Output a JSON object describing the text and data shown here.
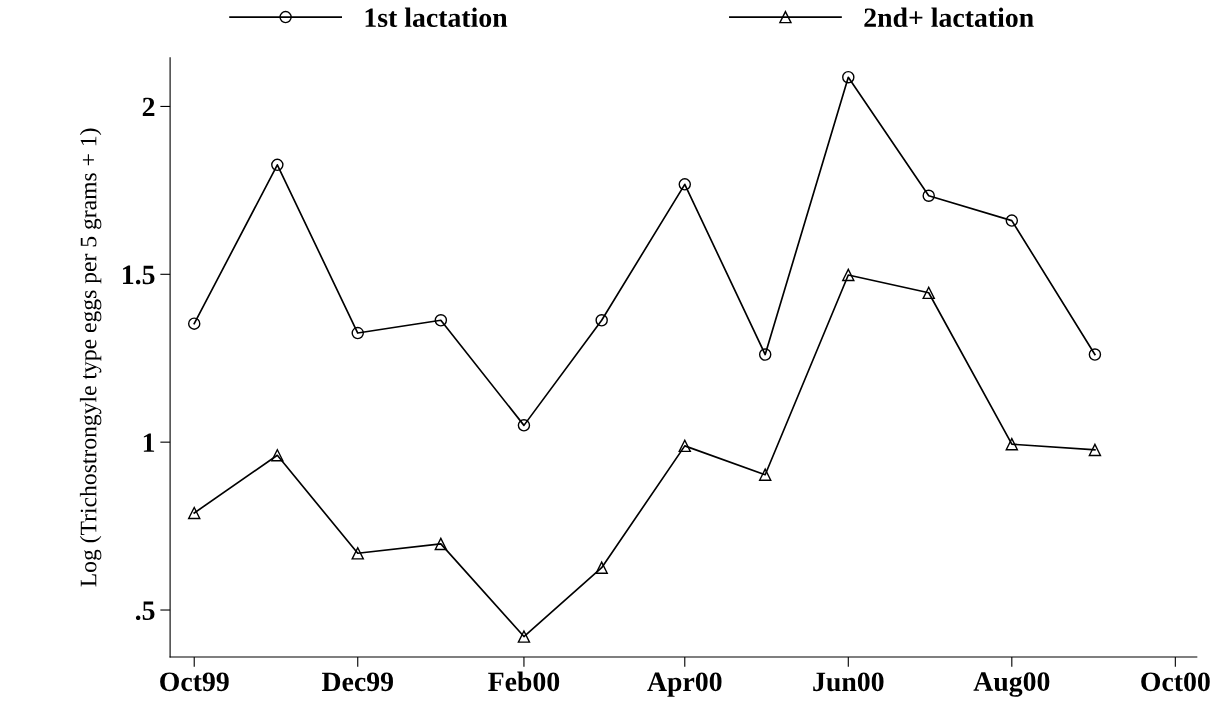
{
  "chart_data": {
    "type": "line",
    "ylabel": "Log (Trichostrongyle type eggs per 5 grams + 1)",
    "x": [
      "1999-10",
      "1999-11",
      "1999-12",
      "2000-01",
      "2000-02",
      "2000-03",
      "2000-04",
      "2000-05",
      "2000-06",
      "2000-07",
      "2000-08",
      "2000-09"
    ],
    "series": [
      {
        "name": "1st lactation",
        "color": "#000000",
        "marker": "circle",
        "values": [
          1.353,
          1.826,
          1.325,
          1.363,
          1.05,
          1.363,
          1.768,
          1.261,
          2.087,
          1.734,
          1.66,
          1.261
        ]
      },
      {
        "name": "2nd+ lactation",
        "color": "#000000",
        "marker": "triangle",
        "values": [
          0.789,
          0.961,
          0.669,
          0.697,
          0.421,
          0.626,
          0.989,
          0.903,
          1.498,
          1.445,
          0.994,
          0.977
        ]
      }
    ],
    "xlim": [
      "1999-09-22",
      "2000-10-09"
    ],
    "xticks": [
      {
        "value": "1999-10",
        "label": "Oct99"
      },
      {
        "value": "1999-12",
        "label": "Dec99"
      },
      {
        "value": "2000-02",
        "label": "Feb00"
      },
      {
        "value": "2000-04",
        "label": "Apr00"
      },
      {
        "value": "2000-06",
        "label": "Jun00"
      },
      {
        "value": "2000-08",
        "label": "Aug00"
      },
      {
        "value": "2000-10",
        "label": "Oct00"
      }
    ],
    "ylim": [
      0.36,
      2.145
    ],
    "yticks": [
      {
        "value": 0.5,
        "label": ".5"
      },
      1,
      1.5,
      2
    ],
    "grid": false,
    "legend": "top",
    "line_style": "solid"
  }
}
